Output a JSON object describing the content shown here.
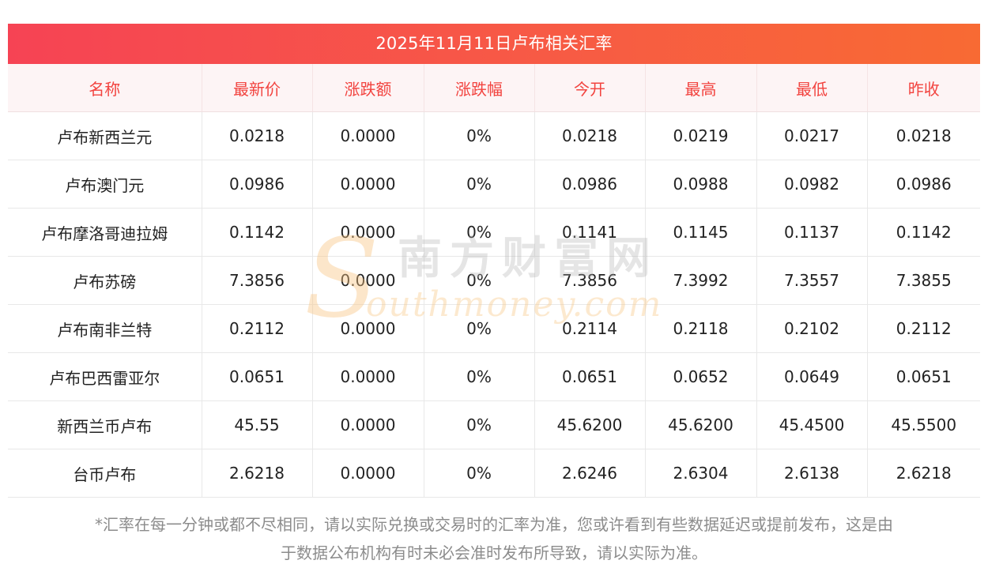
{
  "title": "2025年11月11日卢布相关汇率",
  "columns": [
    "名称",
    "最新价",
    "涨跌额",
    "涨跌幅",
    "今开",
    "最高",
    "最低",
    "昨收"
  ],
  "rows": [
    [
      "卢布新西兰元",
      "0.0218",
      "0.0000",
      "0%",
      "0.0218",
      "0.0219",
      "0.0217",
      "0.0218"
    ],
    [
      "卢布澳门元",
      "0.0986",
      "0.0000",
      "0%",
      "0.0986",
      "0.0988",
      "0.0982",
      "0.0986"
    ],
    [
      "卢布摩洛哥迪拉姆",
      "0.1142",
      "0.0000",
      "0%",
      "0.1141",
      "0.1145",
      "0.1137",
      "0.1142"
    ],
    [
      "卢布苏磅",
      "7.3856",
      "0.0000",
      "0%",
      "7.3856",
      "7.3992",
      "7.3557",
      "7.3855"
    ],
    [
      "卢布南非兰特",
      "0.2112",
      "0.0000",
      "0%",
      "0.2114",
      "0.2118",
      "0.2102",
      "0.2112"
    ],
    [
      "卢布巴西雷亚尔",
      "0.0651",
      "0.0000",
      "0%",
      "0.0651",
      "0.0652",
      "0.0649",
      "0.0651"
    ],
    [
      "新西兰币卢布",
      "45.55",
      "0.0000",
      "0%",
      "45.6200",
      "45.6200",
      "45.4500",
      "45.5500"
    ],
    [
      "台币卢布",
      "2.6218",
      "0.0000",
      "0%",
      "2.6246",
      "2.6304",
      "2.6138",
      "2.6218"
    ]
  ],
  "note_line1": "*汇率在每一分钟或都不尽相同，请以实际兑换或交易时的汇率为准，您或许看到有些数据延迟或提前发布，这是由",
  "note_line2": "于数据公布机构有时未必会准时发布所导致，请以实际为准。",
  "watermark": {
    "letter": "S",
    "cn": "南方财富网",
    "en": "outhmoney.com"
  },
  "colors": {
    "banner_start": "#f64354",
    "banner_end": "#f86a33",
    "header_text": "#f2433f",
    "header_bg": "#fdf4f5"
  }
}
